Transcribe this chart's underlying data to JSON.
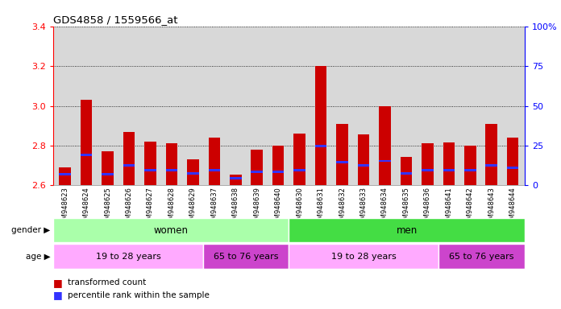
{
  "title": "GDS4858 / 1559566_at",
  "samples": [
    "GSM948623",
    "GSM948624",
    "GSM948625",
    "GSM948626",
    "GSM948627",
    "GSM948628",
    "GSM948629",
    "GSM948637",
    "GSM948638",
    "GSM948639",
    "GSM948640",
    "GSM948630",
    "GSM948631",
    "GSM948632",
    "GSM948633",
    "GSM948634",
    "GSM948635",
    "GSM948636",
    "GSM948641",
    "GSM948642",
    "GSM948643",
    "GSM948644"
  ],
  "transformed_count": [
    2.69,
    3.03,
    2.77,
    2.87,
    2.82,
    2.81,
    2.73,
    2.84,
    2.655,
    2.78,
    2.8,
    2.86,
    3.2,
    2.91,
    2.855,
    3.0,
    2.745,
    2.81,
    2.815,
    2.8,
    2.91,
    2.84
  ],
  "blue_dot_pos": [
    2.655,
    2.753,
    2.655,
    2.7,
    2.676,
    2.675,
    2.66,
    2.675,
    2.635,
    2.668,
    2.668,
    2.677,
    2.798,
    2.718,
    2.7,
    2.723,
    2.662,
    2.675,
    2.678,
    2.676,
    2.7,
    2.688
  ],
  "ymin": 2.6,
  "ymax": 3.4,
  "yticks_left": [
    2.6,
    2.8,
    3.0,
    3.2,
    3.4
  ],
  "yticks_right": [
    0,
    25,
    50,
    75,
    100
  ],
  "bar_color": "#cc0000",
  "dot_color": "#3333ff",
  "bg_color": "#d8d8d8",
  "gender_women_color": "#aaffaa",
  "gender_men_color": "#44dd44",
  "age_young_color": "#ffaaff",
  "age_old_color": "#cc44cc",
  "women_count": 11,
  "men_count": 11,
  "women_young_count": 7,
  "women_old_count": 4,
  "men_young_count": 7,
  "men_old_count": 4,
  "legend_red": "transformed count",
  "legend_blue": "percentile rank within the sample",
  "bar_width": 0.55
}
